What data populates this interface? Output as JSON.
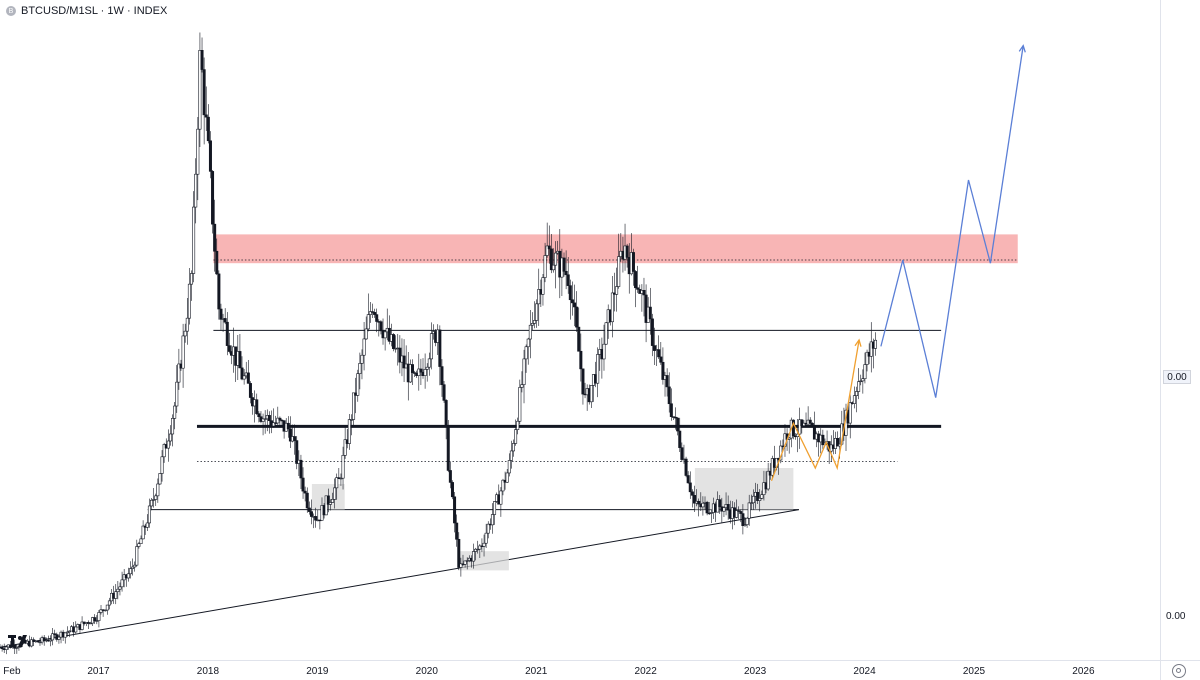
{
  "header": {
    "symbol_icon": "bitcoin-dot-icon",
    "title": "BTCUSD/M1SL · 1W · INDEX"
  },
  "price_axis": {
    "current_badge": "0.00",
    "bottom_label": "0.00"
  },
  "colors": {
    "candles": "#131722",
    "resistance_zone": "#f7a8a8",
    "projection": "#5b7fd6",
    "orange_path": "#f0a030",
    "range_box": "#d9d9d9"
  },
  "chart_data": {
    "type": "candlestick",
    "x_axis": {
      "labels": [
        "Feb",
        "2017",
        "2018",
        "2019",
        "2020",
        "2021",
        "2022",
        "2023",
        "2024",
        "2025",
        "2026"
      ],
      "range": [
        2016.1,
        2026.7
      ]
    },
    "y_axis": {
      "tick_labels": [
        "0.00",
        "0.00"
      ],
      "range": [
        0.0,
        1.0
      ]
    },
    "price_series": {
      "name": "",
      "points": [
        [
          2016.1,
          0.02
        ],
        [
          2016.5,
          0.03
        ],
        [
          2016.8,
          0.05
        ],
        [
          2017.0,
          0.07
        ],
        [
          2017.3,
          0.14
        ],
        [
          2017.5,
          0.25
        ],
        [
          2017.7,
          0.4
        ],
        [
          2017.85,
          0.6
        ],
        [
          2017.93,
          0.95
        ],
        [
          2018.0,
          0.8
        ],
        [
          2018.1,
          0.55
        ],
        [
          2018.3,
          0.45
        ],
        [
          2018.5,
          0.38
        ],
        [
          2018.75,
          0.36
        ],
        [
          2018.9,
          0.25
        ],
        [
          2019.0,
          0.22
        ],
        [
          2019.2,
          0.28
        ],
        [
          2019.35,
          0.42
        ],
        [
          2019.5,
          0.56
        ],
        [
          2019.65,
          0.5
        ],
        [
          2019.9,
          0.43
        ],
        [
          2020.1,
          0.52
        ],
        [
          2020.2,
          0.3
        ],
        [
          2020.3,
          0.14
        ],
        [
          2020.5,
          0.18
        ],
        [
          2020.75,
          0.3
        ],
        [
          2020.95,
          0.52
        ],
        [
          2021.1,
          0.64
        ],
        [
          2021.3,
          0.6
        ],
        [
          2021.45,
          0.4
        ],
        [
          2021.6,
          0.48
        ],
        [
          2021.8,
          0.65
        ],
        [
          2021.95,
          0.58
        ],
        [
          2022.1,
          0.48
        ],
        [
          2022.3,
          0.35
        ],
        [
          2022.45,
          0.24
        ],
        [
          2022.7,
          0.24
        ],
        [
          2022.9,
          0.22
        ],
        [
          2023.1,
          0.28
        ],
        [
          2023.3,
          0.36
        ],
        [
          2023.5,
          0.36
        ],
        [
          2023.7,
          0.33
        ],
        [
          2023.8,
          0.36
        ],
        [
          2023.95,
          0.44
        ],
        [
          2024.1,
          0.5
        ]
      ]
    },
    "levels": [
      {
        "kind": "resistance-zone",
        "y_range": [
          0.62,
          0.665
        ],
        "x_range": [
          2018.05,
          2025.4
        ]
      },
      {
        "kind": "dotted",
        "y": 0.625,
        "x_range": [
          2018.05,
          2025.4
        ]
      },
      {
        "kind": "line",
        "y": 0.515,
        "x_range": [
          2018.05,
          2024.7
        ]
      },
      {
        "kind": "thick-line",
        "y": 0.365,
        "x_range": [
          2017.9,
          2024.7
        ]
      },
      {
        "kind": "dotted",
        "y": 0.31,
        "x_range": [
          2017.9,
          2024.3
        ]
      },
      {
        "kind": "line",
        "y": 0.235,
        "x_range": [
          2017.45,
          2023.4
        ]
      }
    ],
    "trendline": [
      [
        2016.1,
        0.02
      ],
      [
        2023.4,
        0.235
      ]
    ],
    "range_boxes": [
      {
        "x_range": [
          2018.95,
          2019.25
        ],
        "y_range": [
          0.235,
          0.275
        ]
      },
      {
        "x_range": [
          2020.3,
          2020.75
        ],
        "y_range": [
          0.14,
          0.17
        ]
      },
      {
        "x_range": [
          2022.45,
          2023.35
        ],
        "y_range": [
          0.235,
          0.3
        ]
      }
    ],
    "orange_path": [
      [
        2023.15,
        0.28
      ],
      [
        2023.35,
        0.37
      ],
      [
        2023.55,
        0.3
      ],
      [
        2023.65,
        0.34
      ],
      [
        2023.75,
        0.3
      ],
      [
        2023.95,
        0.5
      ]
    ],
    "projection_path": [
      [
        2024.15,
        0.49
      ],
      [
        2024.35,
        0.625
      ],
      [
        2024.65,
        0.41
      ],
      [
        2024.95,
        0.75
      ],
      [
        2025.15,
        0.62
      ],
      [
        2025.45,
        0.96
      ]
    ]
  }
}
